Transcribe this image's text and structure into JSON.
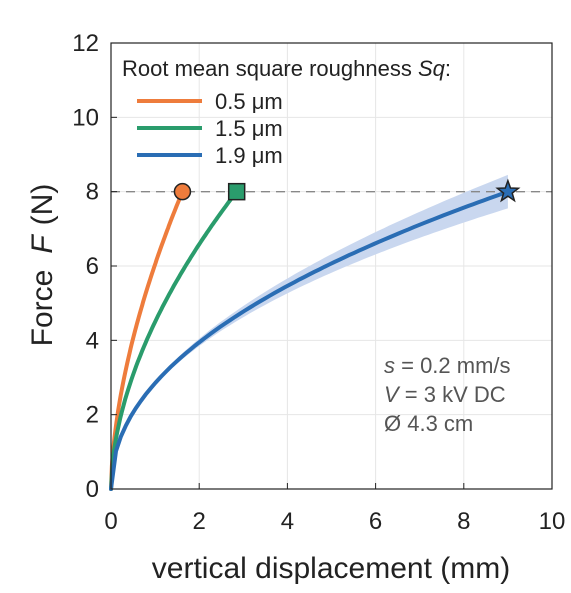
{
  "chart_data": {
    "type": "line",
    "title": "",
    "xlabel": "vertical displacement (mm)",
    "ylabel": "Force",
    "ylabel_symbol": "F",
    "ylabel_unit": "(N)",
    "xlim": [
      0,
      10
    ],
    "ylim": [
      0,
      12
    ],
    "x_ticks": [
      0,
      2,
      4,
      6,
      8,
      10
    ],
    "y_ticks": [
      0,
      2,
      4,
      6,
      8,
      10,
      12
    ],
    "grid": true,
    "reference_line": {
      "y": 8,
      "style": "dashed",
      "color": "#888888"
    },
    "legend": {
      "title": "Root mean square roughness",
      "title_symbol": "Sq",
      "title_suffix": ":",
      "position": "top-left"
    },
    "series": [
      {
        "name": "0.5 μm",
        "color": "#ee7c3c",
        "marker": "circle",
        "x_end": 1.62,
        "y_end": 8.0,
        "exponent": 0.58,
        "band": 0
      },
      {
        "name": "1.5 μm",
        "color": "#2a9c6c",
        "marker": "square",
        "x_end": 2.85,
        "y_end": 8.0,
        "exponent": 0.55,
        "band": 0
      },
      {
        "name": "1.9 μm",
        "color": "#2a6db4",
        "marker": "star",
        "x_end": 9.0,
        "y_end": 8.0,
        "exponent": 0.47,
        "band": 0.45,
        "band_color": "#c9d7ef"
      }
    ],
    "annotations": [
      {
        "symbol": "s",
        "text": " = 0.2 mm/s"
      },
      {
        "symbol": "V",
        "text": " = 3 kV DC"
      },
      {
        "symbol": "",
        "text": "Ø 4.3 cm"
      }
    ]
  }
}
